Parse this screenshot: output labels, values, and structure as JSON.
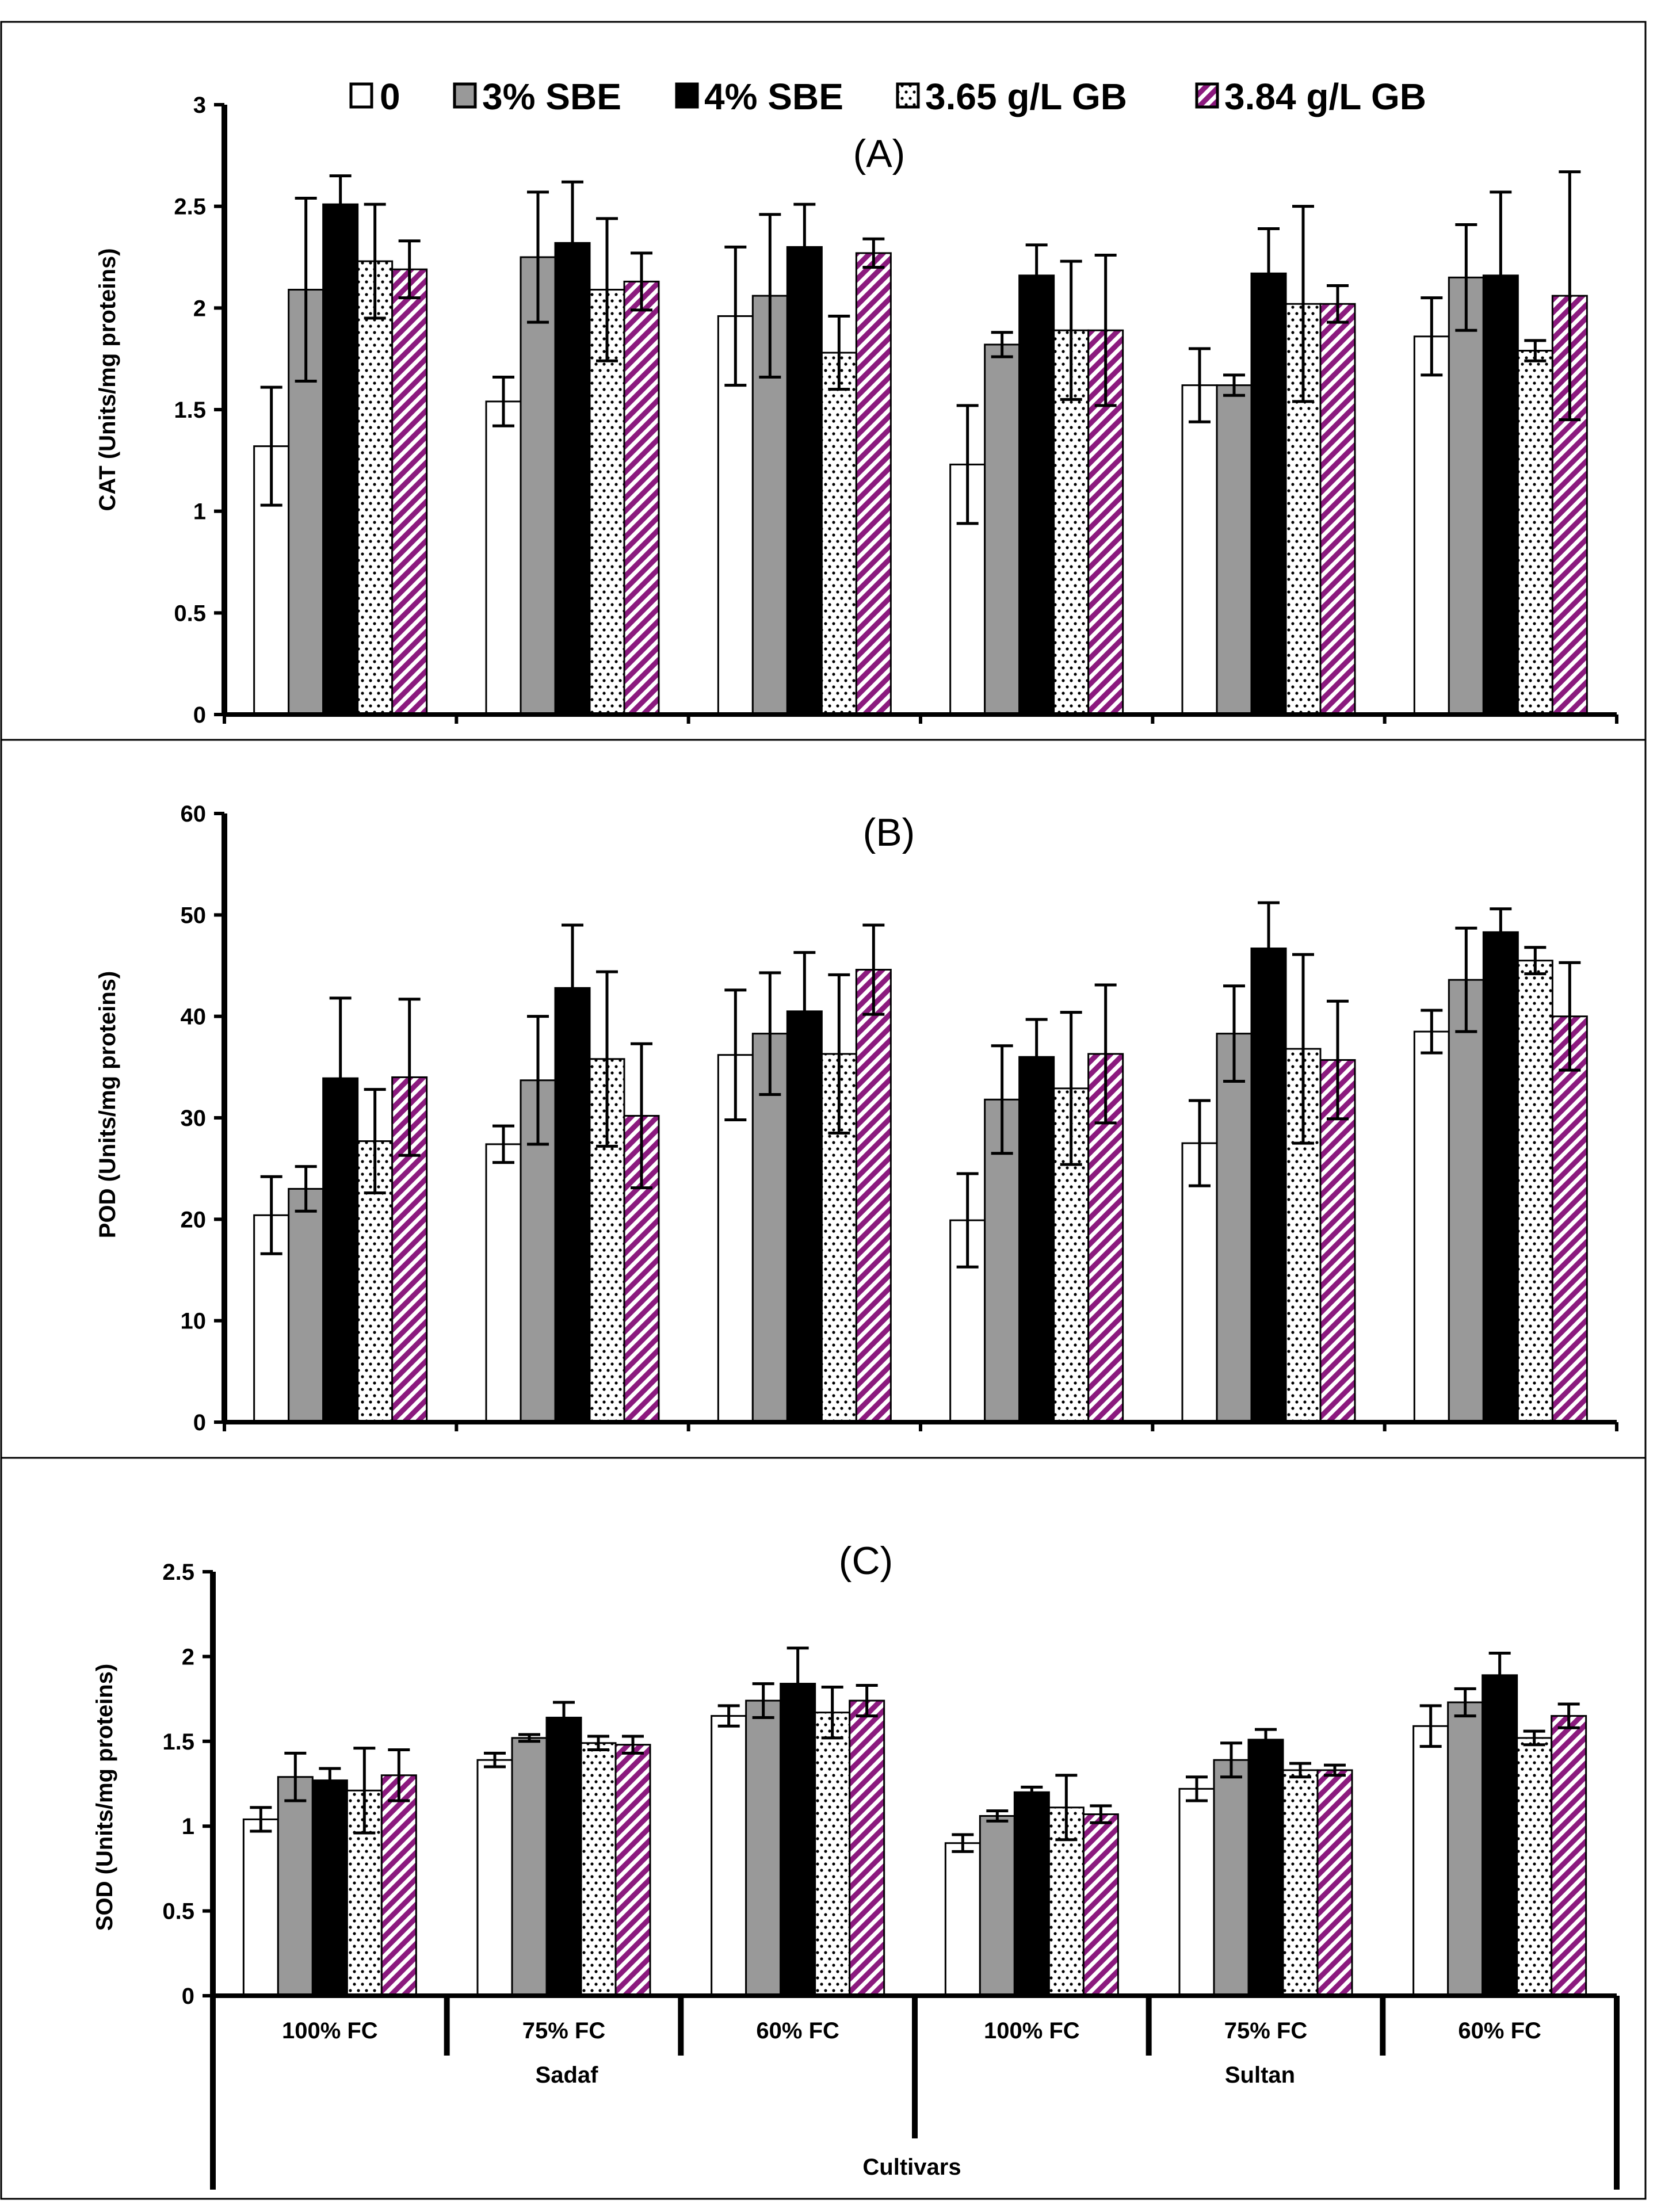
{
  "legend": [
    {
      "label": "0",
      "pattern": "white"
    },
    {
      "label": "3% SBE",
      "pattern": "gray"
    },
    {
      "label": "4% SBE",
      "pattern": "black"
    },
    {
      "label": "3.65 g/L GB",
      "pattern": "dots"
    },
    {
      "label": "3.84 g/L GB",
      "pattern": "stripes"
    }
  ],
  "colors": {
    "gray": "#999999",
    "black": "#000000",
    "white": "#ffffff",
    "purple": "#8b1a7e"
  },
  "chart_data": [
    {
      "type": "bar",
      "title": "(A)",
      "ylabel": "CAT (Units/mg proteins)",
      "ylim": [
        0,
        3
      ],
      "yticks": [
        "0",
        "0.5",
        "1",
        "1.5",
        "2",
        "2.5",
        "3"
      ],
      "categories": [
        "100% FC",
        "75% FC",
        "60% FC",
        "100% FC",
        "75% FC",
        "60% FC"
      ],
      "series": [
        {
          "name": "0",
          "values": [
            1.32,
            1.54,
            1.96,
            1.23,
            1.62,
            1.86
          ],
          "errors": [
            0.29,
            0.12,
            0.34,
            0.29,
            0.18,
            0.19
          ]
        },
        {
          "name": "3% SBE",
          "values": [
            2.09,
            2.25,
            2.06,
            1.82,
            1.62,
            2.15
          ],
          "errors": [
            0.45,
            0.32,
            0.4,
            0.06,
            0.05,
            0.26
          ]
        },
        {
          "name": "4% SBE",
          "values": [
            2.51,
            2.32,
            2.3,
            2.16,
            2.17,
            2.16
          ],
          "errors": [
            0.14,
            0.3,
            0.21,
            0.15,
            0.22,
            0.41
          ]
        },
        {
          "name": "3.65 g/L GB",
          "values": [
            2.23,
            2.09,
            1.78,
            1.89,
            2.02,
            1.79
          ],
          "errors": [
            0.28,
            0.35,
            0.18,
            0.34,
            0.48,
            0.05
          ]
        },
        {
          "name": "3.84 g/L GB",
          "values": [
            2.19,
            2.13,
            2.27,
            1.89,
            2.02,
            2.06
          ],
          "errors": [
            0.14,
            0.14,
            0.07,
            0.37,
            0.09,
            0.61
          ]
        }
      ]
    },
    {
      "type": "bar",
      "title": "(B)",
      "ylabel": "POD (Units/mg proteins)",
      "ylim": [
        0,
        60
      ],
      "yticks": [
        "0",
        "10",
        "20",
        "30",
        "40",
        "50",
        "60"
      ],
      "categories": [
        "100% FC",
        "75% FC",
        "60% FC",
        "100% FC",
        "75% FC",
        "60% FC"
      ],
      "series": [
        {
          "name": "0",
          "values": [
            20.4,
            27.4,
            36.2,
            19.9,
            27.5,
            38.5
          ],
          "errors": [
            3.8,
            1.8,
            6.4,
            4.6,
            4.2,
            2.1
          ]
        },
        {
          "name": "3% SBE",
          "values": [
            23.0,
            33.7,
            38.3,
            31.8,
            38.3,
            43.6
          ],
          "errors": [
            2.2,
            6.3,
            6.0,
            5.3,
            4.7,
            5.1
          ]
        },
        {
          "name": "4% SBE",
          "values": [
            33.9,
            42.8,
            40.5,
            36.0,
            46.7,
            48.3
          ],
          "errors": [
            7.9,
            6.2,
            5.8,
            3.7,
            4.5,
            2.3
          ]
        },
        {
          "name": "3.65 g/L GB",
          "values": [
            27.7,
            35.8,
            36.3,
            32.9,
            36.8,
            45.5
          ],
          "errors": [
            5.1,
            8.6,
            7.8,
            7.5,
            9.3,
            1.3
          ]
        },
        {
          "name": "3.84 g/L GB",
          "values": [
            34.0,
            30.2,
            44.6,
            36.3,
            35.7,
            40.0
          ],
          "errors": [
            7.7,
            7.1,
            4.4,
            6.8,
            5.8,
            5.3
          ]
        }
      ]
    },
    {
      "type": "bar",
      "title": "(C)",
      "ylabel": "SOD (Units/mg proteins)",
      "ylim": [
        0,
        2.5
      ],
      "yticks": [
        "0",
        "0.5",
        "1",
        "1.5",
        "2",
        "2.5"
      ],
      "categories": [
        "100% FC",
        "75% FC",
        "60% FC",
        "100% FC",
        "75% FC",
        "60% FC"
      ],
      "groups": [
        "Sadaf",
        "Sultan"
      ],
      "xlabel": "Cultivars",
      "series": [
        {
          "name": "0",
          "values": [
            1.04,
            1.39,
            1.65,
            0.9,
            1.22,
            1.59
          ],
          "errors": [
            0.07,
            0.04,
            0.06,
            0.05,
            0.07,
            0.12
          ]
        },
        {
          "name": "3% SBE",
          "values": [
            1.29,
            1.52,
            1.74,
            1.06,
            1.39,
            1.73
          ],
          "errors": [
            0.14,
            0.02,
            0.1,
            0.03,
            0.1,
            0.08
          ]
        },
        {
          "name": "4% SBE",
          "values": [
            1.27,
            1.64,
            1.84,
            1.2,
            1.51,
            1.89
          ],
          "errors": [
            0.07,
            0.09,
            0.21,
            0.03,
            0.06,
            0.13
          ]
        },
        {
          "name": "3.65 g/L GB",
          "values": [
            1.21,
            1.49,
            1.67,
            1.11,
            1.33,
            1.52
          ],
          "errors": [
            0.25,
            0.04,
            0.15,
            0.19,
            0.04,
            0.04
          ]
        },
        {
          "name": "3.84 g/L GB",
          "values": [
            1.3,
            1.48,
            1.74,
            1.07,
            1.33,
            1.65
          ],
          "errors": [
            0.15,
            0.05,
            0.09,
            0.05,
            0.03,
            0.07
          ]
        }
      ]
    }
  ]
}
